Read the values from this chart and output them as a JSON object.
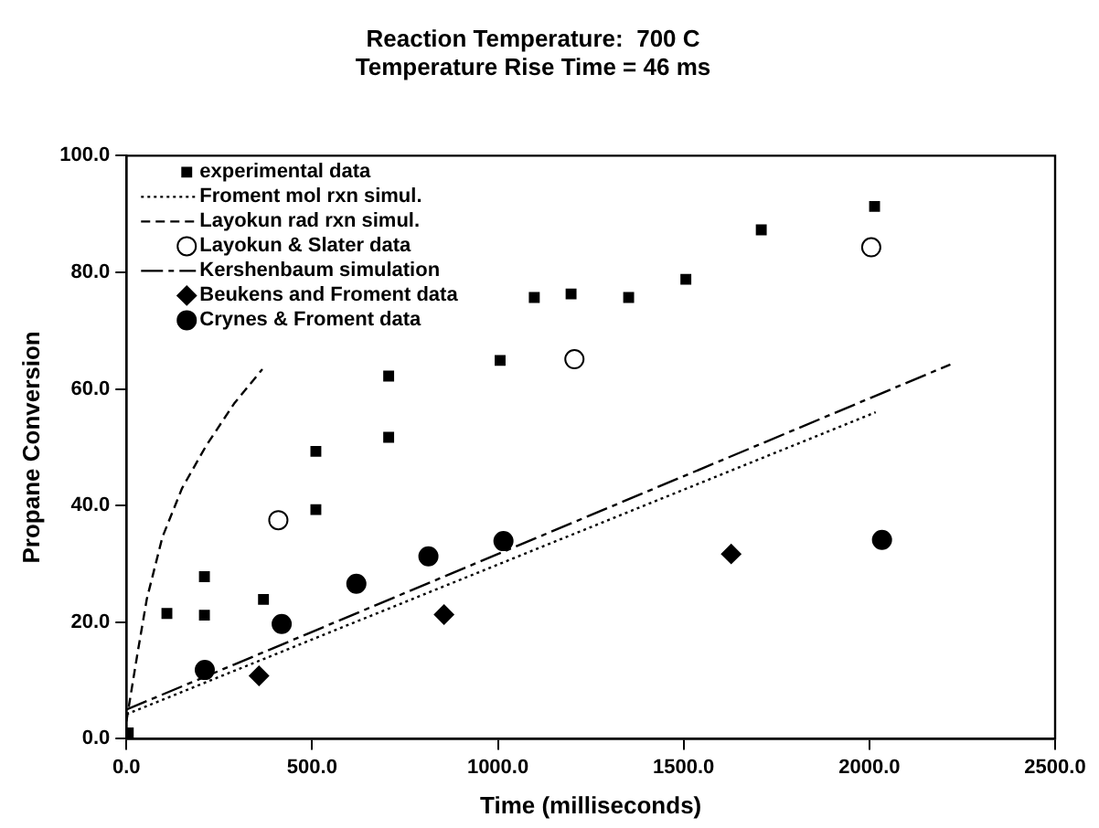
{
  "chart_data": {
    "type": "scatter",
    "title": "Reaction Temperature:  700 C",
    "subtitle": "Temperature Rise Time = 46 ms",
    "xlabel": "Time (milliseconds)",
    "ylabel": "Propane Conversion",
    "xlim": [
      0,
      2500
    ],
    "ylim": [
      0,
      100
    ],
    "xticks": [
      {
        "value": 0,
        "label": "0.0"
      },
      {
        "value": 500,
        "label": "500.0"
      },
      {
        "value": 1000,
        "label": "1000.0"
      },
      {
        "value": 1500,
        "label": "1500.0"
      },
      {
        "value": 2000,
        "label": "2000.0"
      },
      {
        "value": 2500,
        "label": "2500.0"
      }
    ],
    "yticks": [
      {
        "value": 0,
        "label": "0.0"
      },
      {
        "value": 20,
        "label": "20.0"
      },
      {
        "value": 40,
        "label": "40.0"
      },
      {
        "value": 60,
        "label": "60.0"
      },
      {
        "value": 80,
        "label": "80.0"
      },
      {
        "value": 100,
        "label": "100.0"
      }
    ],
    "grid": false,
    "legend": "top left",
    "series": [
      {
        "name": "experimental data",
        "type": "scatter",
        "marker": "square",
        "color": "#000000",
        "x": [
          5,
          109,
          210,
          210,
          369,
          510,
          510,
          706,
          706,
          1006,
          1098,
          1197,
          1352,
          1506,
          1709,
          2014
        ],
        "values": [
          1,
          21.5,
          27.8,
          21.2,
          23.9,
          49.3,
          39.3,
          62.2,
          51.7,
          64.9,
          75.7,
          76.3,
          75.7,
          78.8,
          87.3,
          91.3
        ]
      },
      {
        "name": "Froment mol rxn simul.",
        "type": "line",
        "marker": "none",
        "line_style": "dotted",
        "color": "#000000",
        "x": [
          0,
          2017
        ],
        "values": [
          4.2,
          56
        ]
      },
      {
        "name": "Layokun rad rxn simul.",
        "type": "line",
        "marker": "none",
        "line_style": "dashed",
        "color": "#000000",
        "x": [
          0,
          30,
          55,
          97,
          150,
          215,
          290,
          366
        ],
        "values": [
          3,
          14.7,
          24,
          34.6,
          43,
          50.3,
          57.5,
          63.4
        ]
      },
      {
        "name": "Layokun & Slater data",
        "type": "scatter",
        "marker": "circle",
        "color": "#ffffff",
        "x": [
          409,
          1206,
          2005
        ],
        "values": [
          37.5,
          65.1,
          84.3
        ]
      },
      {
        "name": "Kershenbaum simulation",
        "type": "line",
        "marker": "none",
        "line_style": "dashdot",
        "color": "#000000",
        "x": [
          0,
          2218
        ],
        "values": [
          5,
          64.2
        ]
      },
      {
        "name": "Beukens and Froment data",
        "type": "scatter",
        "marker": "diamond",
        "color": "#000000",
        "x": [
          357,
          855,
          1628
        ],
        "values": [
          10.8,
          21.3,
          31.7
        ]
      },
      {
        "name": "Crynes & Froment data",
        "type": "scatter",
        "marker": "circle",
        "color": "#000000",
        "x": [
          211,
          418,
          619,
          813,
          1015,
          2034
        ],
        "values": [
          11.8,
          19.7,
          26.6,
          31.3,
          33.9,
          34.1
        ]
      }
    ]
  }
}
